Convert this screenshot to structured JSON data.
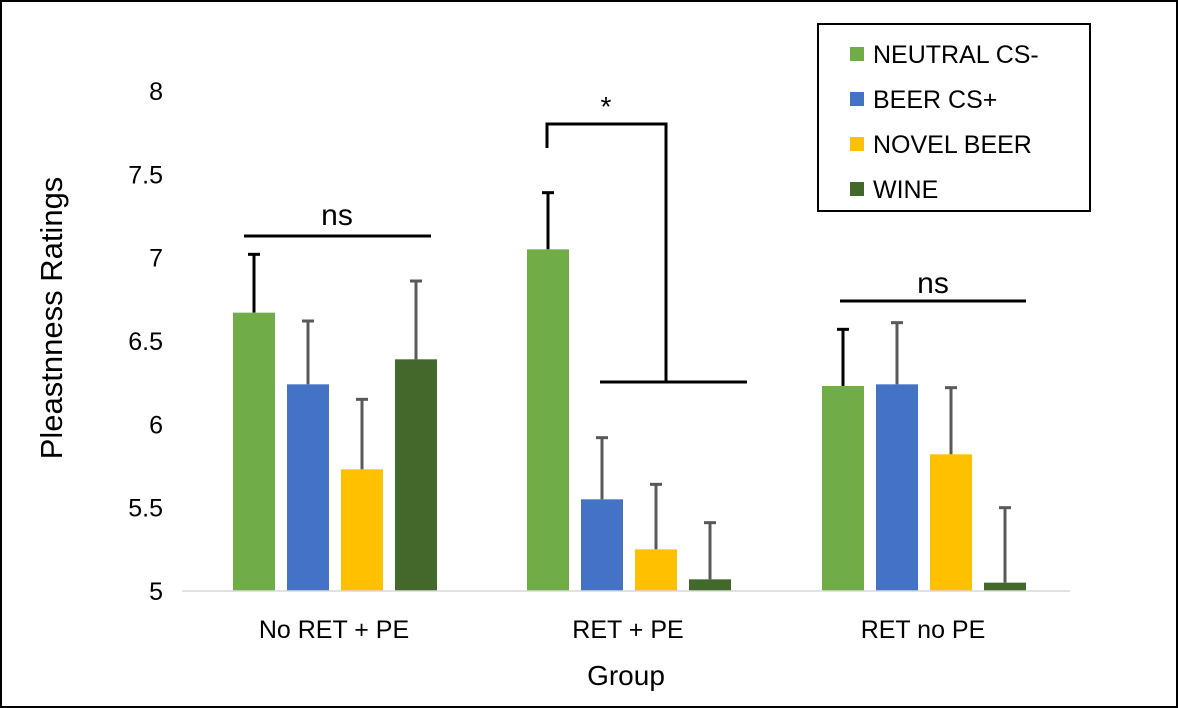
{
  "chart_data": {
    "type": "bar",
    "title": "",
    "xlabel": "Group",
    "ylabel": "Pleastnness Ratings",
    "ylim": [
      5,
      8
    ],
    "yticks": [
      "5",
      "5.5",
      "6",
      "6.5",
      "7",
      "7.5",
      "8"
    ],
    "grid": false,
    "legend_position": "top-right",
    "categories": [
      "No RET + PE",
      "RET + PE",
      "RET no PE"
    ],
    "series": [
      {
        "name": "NEUTRAL CS-",
        "color": "#70AD47",
        "values": [
          6.67,
          7.05,
          6.23
        ],
        "errors": [
          0.35,
          0.34,
          0.34
        ]
      },
      {
        "name": "BEER CS+",
        "color": "#4472C4",
        "values": [
          6.24,
          5.55,
          6.24
        ],
        "errors": [
          0.38,
          0.37,
          0.37
        ]
      },
      {
        "name": "NOVEL BEER",
        "color": "#FFC000",
        "values": [
          5.73,
          5.25,
          5.82
        ],
        "errors": [
          0.42,
          0.39,
          0.4
        ]
      },
      {
        "name": "WINE",
        "color": "#43682B",
        "values": [
          6.39,
          5.07,
          5.05
        ],
        "errors": [
          0.47,
          0.34,
          0.45
        ]
      }
    ],
    "annotations": [
      {
        "label": "ns",
        "group": 0
      },
      {
        "label": "*",
        "group": 1
      },
      {
        "label": "ns",
        "group": 2
      }
    ]
  }
}
